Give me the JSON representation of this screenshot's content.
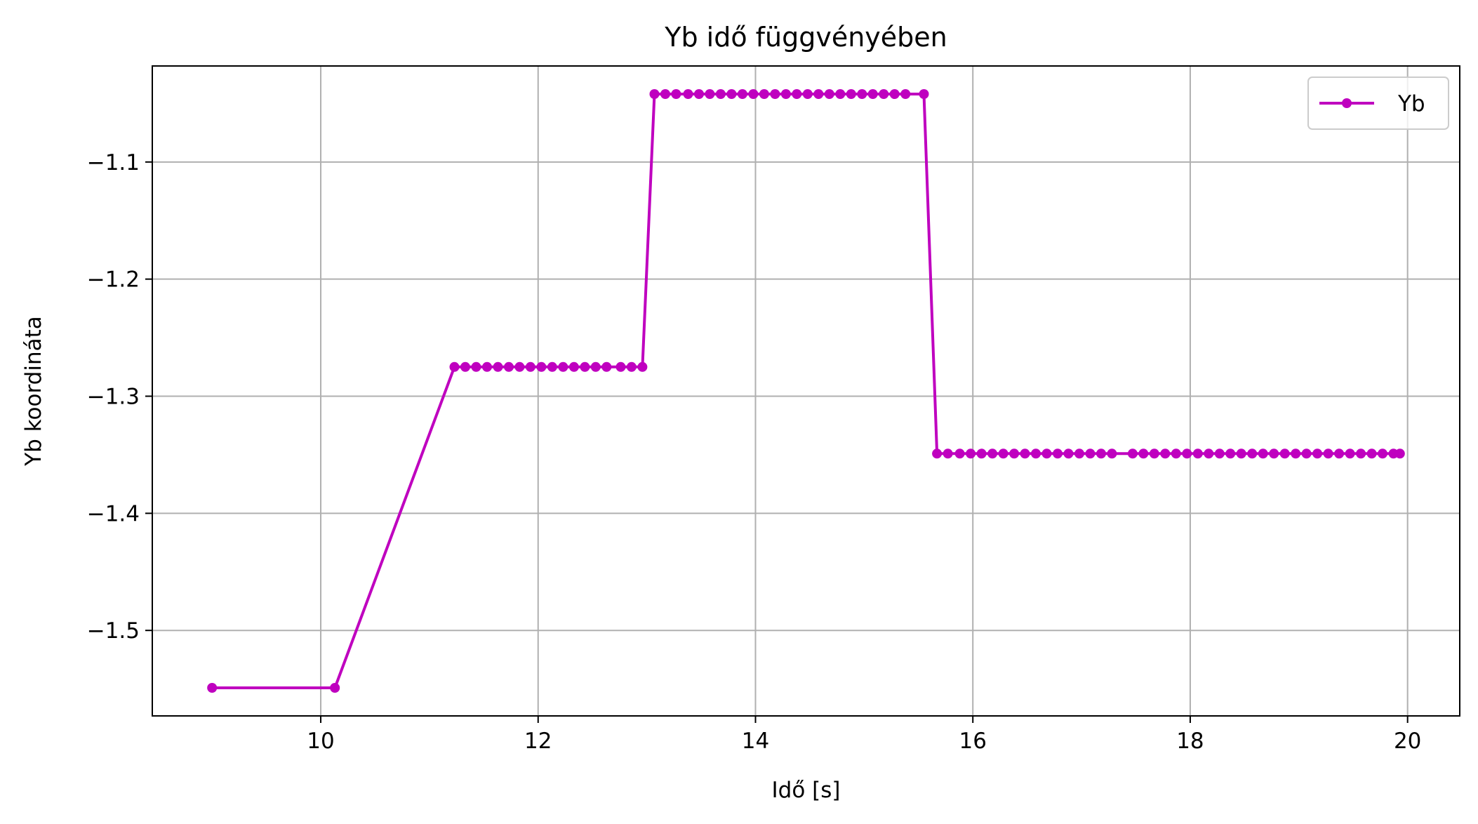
{
  "chart_data": {
    "type": "line",
    "title": "Yb idő függvényében",
    "xlabel": "Idő [s]",
    "ylabel": "Yb koordináta",
    "xlim": [
      8.45,
      20.48
    ],
    "ylim": [
      -1.573,
      -1.018
    ],
    "x_ticks": [
      10,
      12,
      14,
      16,
      18,
      20
    ],
    "y_ticks": [
      -1.5,
      -1.4,
      -1.3,
      -1.2,
      -1.1
    ],
    "x_tick_labels": [
      "10",
      "12",
      "14",
      "16",
      "18",
      "20"
    ],
    "y_tick_labels": [
      "−1.5",
      "−1.4",
      "−1.3",
      "−1.2",
      "−1.1"
    ],
    "grid": true,
    "legend_position": "top-right",
    "series": [
      {
        "name": "Yb",
        "color": "#bf00bf",
        "marker": "circle",
        "x": [
          9.0,
          10.13,
          11.23,
          11.33,
          11.43,
          11.53,
          11.63,
          11.73,
          11.83,
          11.93,
          12.03,
          12.13,
          12.23,
          12.33,
          12.43,
          12.53,
          12.63,
          12.76,
          12.86,
          12.96,
          13.07,
          13.17,
          13.27,
          13.38,
          13.48,
          13.58,
          13.68,
          13.78,
          13.88,
          13.98,
          14.08,
          14.18,
          14.28,
          14.38,
          14.48,
          14.58,
          14.68,
          14.78,
          14.88,
          14.98,
          15.08,
          15.18,
          15.28,
          15.38,
          15.55,
          15.67,
          15.77,
          15.88,
          15.98,
          16.08,
          16.18,
          16.28,
          16.38,
          16.48,
          16.58,
          16.68,
          16.78,
          16.88,
          16.98,
          17.08,
          17.18,
          17.28,
          17.47,
          17.57,
          17.67,
          17.77,
          17.87,
          17.97,
          18.07,
          18.17,
          18.27,
          18.37,
          18.47,
          18.57,
          18.67,
          18.77,
          18.87,
          18.97,
          19.07,
          19.17,
          19.27,
          19.37,
          19.47,
          19.57,
          19.67,
          19.77,
          19.87,
          19.93
        ],
        "y": [
          -1.549,
          -1.549,
          -1.275,
          -1.275,
          -1.275,
          -1.275,
          -1.275,
          -1.275,
          -1.275,
          -1.275,
          -1.275,
          -1.275,
          -1.275,
          -1.275,
          -1.275,
          -1.275,
          -1.275,
          -1.275,
          -1.275,
          -1.275,
          -1.042,
          -1.042,
          -1.042,
          -1.042,
          -1.042,
          -1.042,
          -1.042,
          -1.042,
          -1.042,
          -1.042,
          -1.042,
          -1.042,
          -1.042,
          -1.042,
          -1.042,
          -1.042,
          -1.042,
          -1.042,
          -1.042,
          -1.042,
          -1.042,
          -1.042,
          -1.042,
          -1.042,
          -1.042,
          -1.349,
          -1.349,
          -1.349,
          -1.349,
          -1.349,
          -1.349,
          -1.349,
          -1.349,
          -1.349,
          -1.349,
          -1.349,
          -1.349,
          -1.349,
          -1.349,
          -1.349,
          -1.349,
          -1.349,
          -1.349,
          -1.349,
          -1.349,
          -1.349,
          -1.349,
          -1.349,
          -1.349,
          -1.349,
          -1.349,
          -1.349,
          -1.349,
          -1.349,
          -1.349,
          -1.349,
          -1.349,
          -1.349,
          -1.349,
          -1.349,
          -1.349,
          -1.349,
          -1.349,
          -1.349,
          -1.349,
          -1.349,
          -1.349,
          -1.349
        ]
      }
    ]
  }
}
